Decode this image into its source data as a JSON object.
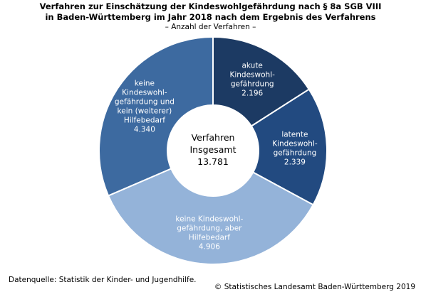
{
  "chart_data": {
    "type": "pie",
    "title": "Verfahren zur Einschätzung der Kindeswohlgefährdung  nach § 8a SGB VIII",
    "title_line2": "in Baden-Württemberg im Jahr 2018 nach dem Ergebnis des Verfahrens",
    "subtitle": "– Anzahl der Verfahren –",
    "center_label": [
      "Verfahren",
      "Insgesamt"
    ],
    "center_value": "13.781",
    "slices": [
      {
        "label": [
          "akute",
          "Kindeswohl-",
          "gefährdung"
        ],
        "value": 2196,
        "display": "2.196",
        "color": "#1c3a63"
      },
      {
        "label": [
          "latente",
          "Kindeswohl-",
          "gefährdung"
        ],
        "value": 2339,
        "display": "2.339",
        "color": "#224a80"
      },
      {
        "label": [
          "keine Kindeswohl-",
          "gefährdung, aber",
          "Hilfebedarf"
        ],
        "value": 4906,
        "display": "4.906",
        "color": "#94b3d9"
      },
      {
        "label": [
          "keine",
          "Kindeswohl-",
          "gefährdung und",
          "kein (weiterer)",
          "Hilfebedarf"
        ],
        "value": 4340,
        "display": "4.340",
        "color": "#3d6aa0"
      }
    ]
  },
  "footer": {
    "source": "Datenquelle: Statistik der Kinder- und Jugendhilfe.",
    "copyright": "© Statistisches Landesamt Baden-Württemberg 2019"
  }
}
